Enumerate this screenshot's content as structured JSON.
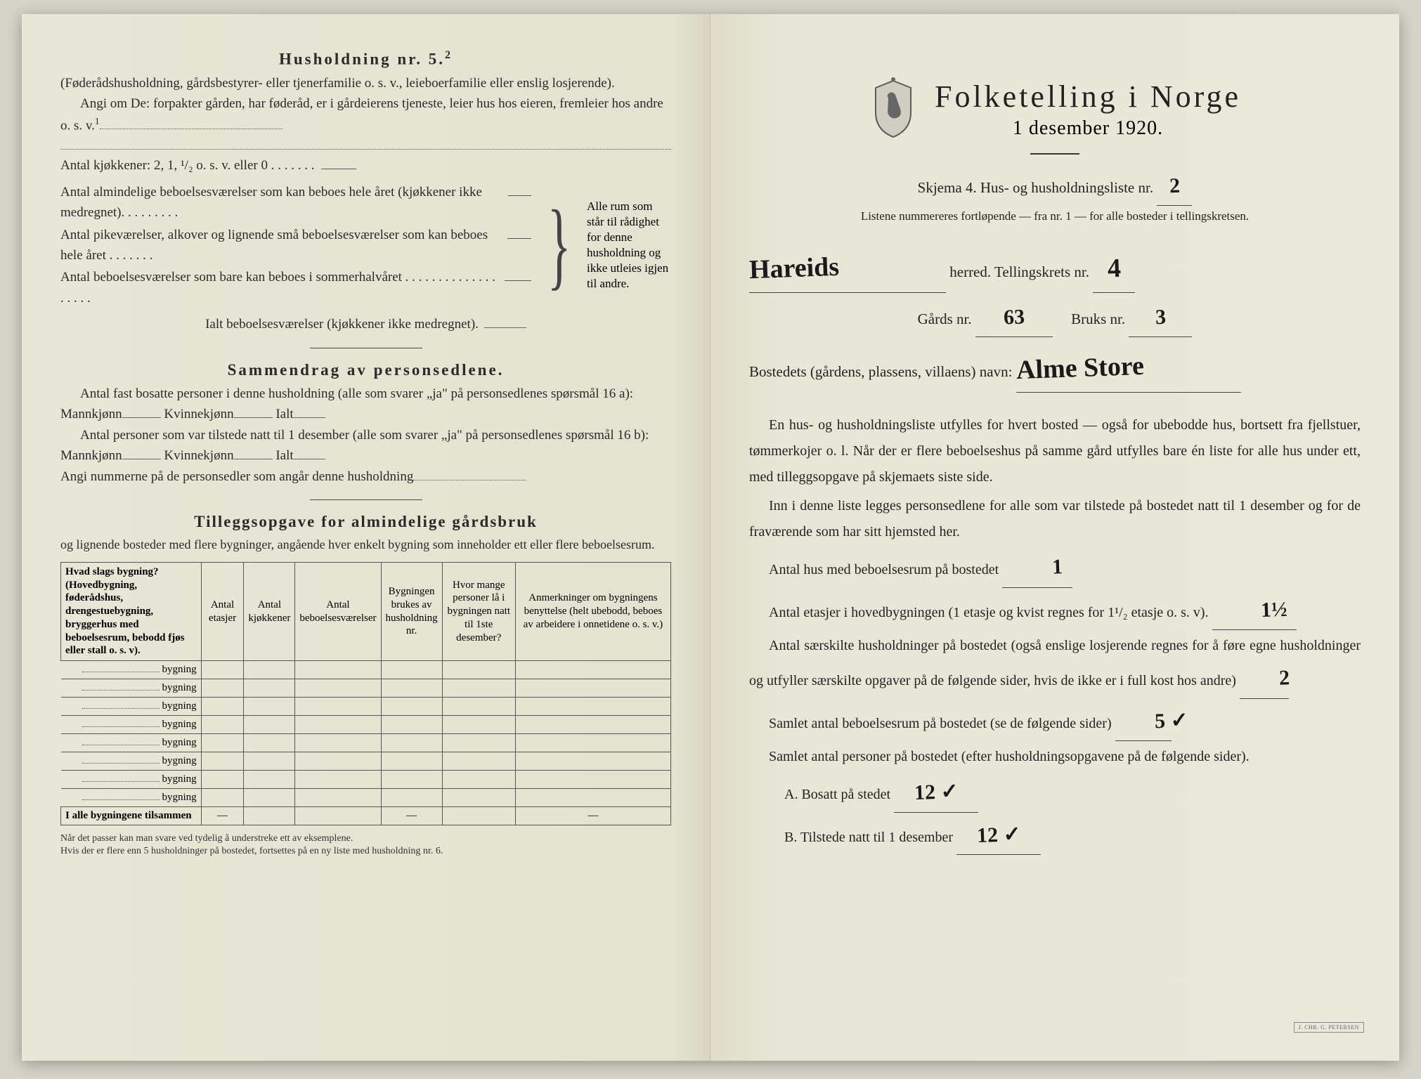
{
  "left": {
    "title": "Husholdning nr. 5.",
    "title_sup": "2",
    "para1": "(Føderådshusholdning, gårdsbestyrer- eller tjenerfamilie o. s. v., leieboerfamilie eller enslig losjerende).",
    "para2": "Angi om De: forpakter gården, har føderåd, er i gårdeierens tjeneste, leier hus hos eieren, fremleier hos andre o. s. v.",
    "para2_sup": "1",
    "kjokkener": "Antal kjøkkener: 2, 1, ¹/₂ o. s. v. eller 0 . . . . . . .",
    "brace_lines": [
      "Antal almindelige beboelsesværelser som kan beboes hele året (kjøkkener ikke medregnet). . . . . . . . .",
      "Antal pikeværelser, alkover og lignende små beboelsesværelser som kan beboes hele året . . . . . . .",
      "Antal beboelsesværelser som bare kan beboes i sommerhalvåret . . . . . . . . . . . . . . . . . . ."
    ],
    "brace_right": "Alle rum som står til rådighet for denne husholdning og ikke utleies igjen til andre.",
    "ialt": "Ialt beboelsesværelser (kjøkkener ikke medregnet).",
    "sammendrag_title": "Sammendrag av personsedlene.",
    "sam1a": "Antal fast bosatte personer i denne husholdning (alle som svarer „ja\" på personsedlenes spørsmål 16 a): Mannkjønn",
    "sam1b": "Kvinnekjønn",
    "sam1c": "Ialt",
    "sam2a": "Antal personer som var tilstede natt til 1 desember (alle som svarer „ja\" på personsedlenes spørsmål 16 b): Mannkjønn",
    "sam3": "Angi nummerne på de personsedler som angår denne husholdning",
    "tillegg_title": "Tilleggsopgave for almindelige gårdsbruk",
    "tillegg_sub": "og lignende bosteder med flere bygninger, angående hver enkelt bygning som inneholder ett eller flere beboelsesrum.",
    "table": {
      "headers": [
        "Hvad slags bygning?\n(Hovedbygning, føderådshus, drengestuebygning, bryggerhus med beboelsesrum, bebodd fjøs eller stall o. s. v).",
        "Antal etasjer",
        "Antal kjøkkener",
        "Antal beboelsesværelser",
        "Bygningen brukes av husholdning nr.",
        "Hvor mange personer lå i bygningen natt til 1ste desember?",
        "Anmerkninger om bygningens benyttelse (helt ubebodd, beboes av arbeidere i onnetidene o. s. v.)"
      ],
      "row_suffix": "bygning",
      "row_count": 8,
      "footer_label": "I alle bygningene tilsammen",
      "footer_dash": "—"
    },
    "footnote": "Når det passer kan man svare ved tydelig å understreke ett av eksemplene.\nHvis der er flere enn 5 husholdninger på bostedet, fortsettes på en ny liste med husholdning nr. 6."
  },
  "right": {
    "main_title": "Folketelling i Norge",
    "date": "1 desember 1920.",
    "skjema": "Skjema 4.   Hus- og husholdningsliste nr.",
    "skjema_val": "2",
    "listene": "Listene nummereres fortløpende — fra nr. 1 — for alle bosteder i tellingskretsen.",
    "herred_val": "Hareids",
    "herred_label": "herred.  Tellingskrets nr.",
    "krets_val": "4",
    "gards_label": "Gårds nr.",
    "gards_val": "63",
    "bruks_label": "Bruks nr.",
    "bruks_val": "3",
    "bostedets": "Bostedets (gårdens, plassens, villaens) navn:",
    "bostedets_val": "Alme Store",
    "body1": "En hus- og husholdningsliste utfylles for hvert bosted — også for ubebodde hus, bortsett fra fjellstuer, tømmerkojer o. l.  Når der er flere beboelseshus på samme gård utfylles bare én liste for alle hus under ett, med tilleggsopgave på skjemaets siste side.",
    "body2": "Inn i denne liste legges personsedlene for alle som var tilstede på bostedet natt til 1 desember og for de fraværende som har sitt hjemsted her.",
    "q1": "Antal hus med beboelsesrum på bostedet",
    "q1_val": "1",
    "q2a": "Antal etasjer i hovedbygningen (1 etasje og kvist regnes for 1¹/₂ etasje o. s. v).",
    "q2_val": "1½",
    "q3": "Antal særskilte husholdninger på bostedet (også enslige losjerende regnes for å føre egne husholdninger og utfyller særskilte opgaver på de følgende sider, hvis de ikke er i full kost hos andre)",
    "q3_val": "2",
    "q4": "Samlet antal beboelsesrum på bostedet (se de følgende sider)",
    "q4_val": "5 ✓",
    "q5": "Samlet antal personer på bostedet (efter husholdningsopgavene på de følgende sider).",
    "qA": "A.  Bosatt på stedet",
    "qA_val": "12 ✓",
    "qB": "B.  Tilstede natt til 1 desember",
    "qB_val": "12 ✓",
    "printer": "J. CHR. G. PETERSEN"
  }
}
